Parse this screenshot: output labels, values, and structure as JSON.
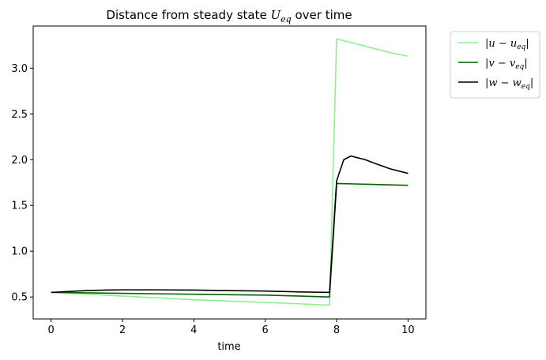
{
  "chart_data": {
    "type": "line",
    "title": "Distance from steady state U_eq over time",
    "title_parts": {
      "prefix": "Distance from steady state ",
      "symbol": "U",
      "subscript": "eq",
      "suffix": " over time"
    },
    "xlabel": "time",
    "ylabel": "",
    "xlim": [
      -0.5,
      10.5
    ],
    "ylim": [
      0.26,
      3.46
    ],
    "xticks": [
      0,
      2,
      4,
      6,
      8,
      10
    ],
    "yticks": [
      0.5,
      1.0,
      1.5,
      2.0,
      2.5,
      3.0
    ],
    "ytick_labels": [
      "0.5",
      "1.0",
      "1.5",
      "2.0",
      "2.5",
      "3.0"
    ],
    "grid": false,
    "legend_position": "outside-right-top",
    "series": [
      {
        "name": "|u − u_eq|",
        "legend": {
          "prefix": "|u − u",
          "subscript": "eq",
          "suffix": "|"
        },
        "color": "#90ee90",
        "x": [
          0,
          1,
          2,
          3,
          4,
          5,
          6,
          7,
          7.8,
          8.0,
          8.5,
          9.0,
          9.5,
          10.0
        ],
        "y": [
          0.55,
          0.53,
          0.51,
          0.49,
          0.47,
          0.455,
          0.44,
          0.425,
          0.41,
          3.32,
          3.27,
          3.22,
          3.17,
          3.13
        ]
      },
      {
        "name": "|v − v_eq|",
        "legend": {
          "prefix": "|v − v",
          "subscript": "eq",
          "suffix": "|"
        },
        "color": "#006400",
        "x": [
          0,
          1,
          2,
          3,
          4,
          5,
          6,
          7,
          7.8,
          8.0,
          8.5,
          9.0,
          9.5,
          10.0
        ],
        "y": [
          0.55,
          0.545,
          0.54,
          0.535,
          0.53,
          0.525,
          0.52,
          0.51,
          0.5,
          1.74,
          1.735,
          1.73,
          1.725,
          1.72
        ]
      },
      {
        "name": "|w − w_eq|",
        "legend": {
          "prefix": "|w − w",
          "subscript": "eq",
          "suffix": "|"
        },
        "color": "#000000",
        "x": [
          0,
          0.5,
          1,
          1.5,
          2,
          3,
          4,
          5,
          6,
          7,
          7.8,
          8.0,
          8.2,
          8.4,
          8.6,
          8.8,
          9.0,
          9.5,
          10.0
        ],
        "y": [
          0.55,
          0.56,
          0.57,
          0.575,
          0.578,
          0.578,
          0.575,
          0.57,
          0.565,
          0.555,
          0.55,
          1.77,
          2.0,
          2.04,
          2.02,
          2.0,
          1.97,
          1.9,
          1.85
        ]
      }
    ]
  }
}
